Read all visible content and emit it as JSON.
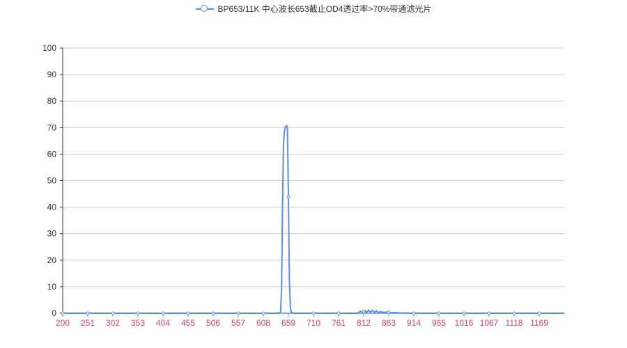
{
  "chart_data": {
    "type": "line",
    "title": "",
    "xlabel": "",
    "ylabel": "",
    "legend": {
      "position": "top-center",
      "entries": [
        "BP653/11K 中心波长653截止OD4透过率>70%带通滤光片"
      ]
    },
    "colors": {
      "series": "#5b8ff0",
      "x_tick_label": "#d6456c",
      "grid": "#cccccc"
    },
    "grid": true,
    "x_tick_labels": [
      "200",
      "251",
      "302",
      "353",
      "404",
      "455",
      "506",
      "557",
      "608",
      "659",
      "710",
      "761",
      "812",
      "863",
      "914",
      "965",
      "1016",
      "1067",
      "1118",
      "1169"
    ],
    "xlim": [
      200,
      1220
    ],
    "ylim": [
      0,
      100
    ],
    "y_ticks": [
      0,
      10,
      20,
      30,
      40,
      50,
      60,
      70,
      80,
      90,
      100
    ],
    "series": [
      {
        "name": "BP653/11K 中心波长653截止OD4透过率>70%带通滤光片",
        "x": [
          200,
          251,
          302,
          353,
          404,
          455,
          506,
          557,
          608,
          630,
          640,
          643,
          645,
          647,
          649,
          651,
          653,
          655,
          657,
          659,
          661,
          663,
          665,
          670,
          680,
          710,
          761,
          800,
          805,
          810,
          815,
          818,
          822,
          826,
          830,
          834,
          838,
          842,
          846,
          850,
          855,
          860,
          865,
          870,
          880,
          890,
          900,
          914,
          965,
          1016,
          1067,
          1118,
          1169,
          1220
        ],
        "y": [
          0,
          0,
          0,
          0,
          0,
          0,
          0,
          0,
          0,
          0,
          0,
          0.5,
          8,
          40,
          64,
          69,
          70.2,
          70.8,
          69.5,
          44,
          12,
          2,
          0.3,
          0,
          0,
          0,
          0,
          0,
          0.8,
          0.3,
          1.0,
          0.2,
          1.2,
          0.4,
          1.1,
          0.3,
          0.9,
          0.2,
          0.6,
          0.4,
          0.3,
          0.5,
          0.2,
          0.3,
          0.2,
          0.1,
          0.1,
          0,
          0,
          0,
          0,
          0,
          0,
          0
        ]
      }
    ],
    "marker_x": [
      200,
      251,
      302,
      353,
      404,
      455,
      506,
      557,
      608,
      659,
      710,
      761,
      812,
      863,
      914,
      965,
      1016,
      1067,
      1118,
      1169
    ]
  }
}
